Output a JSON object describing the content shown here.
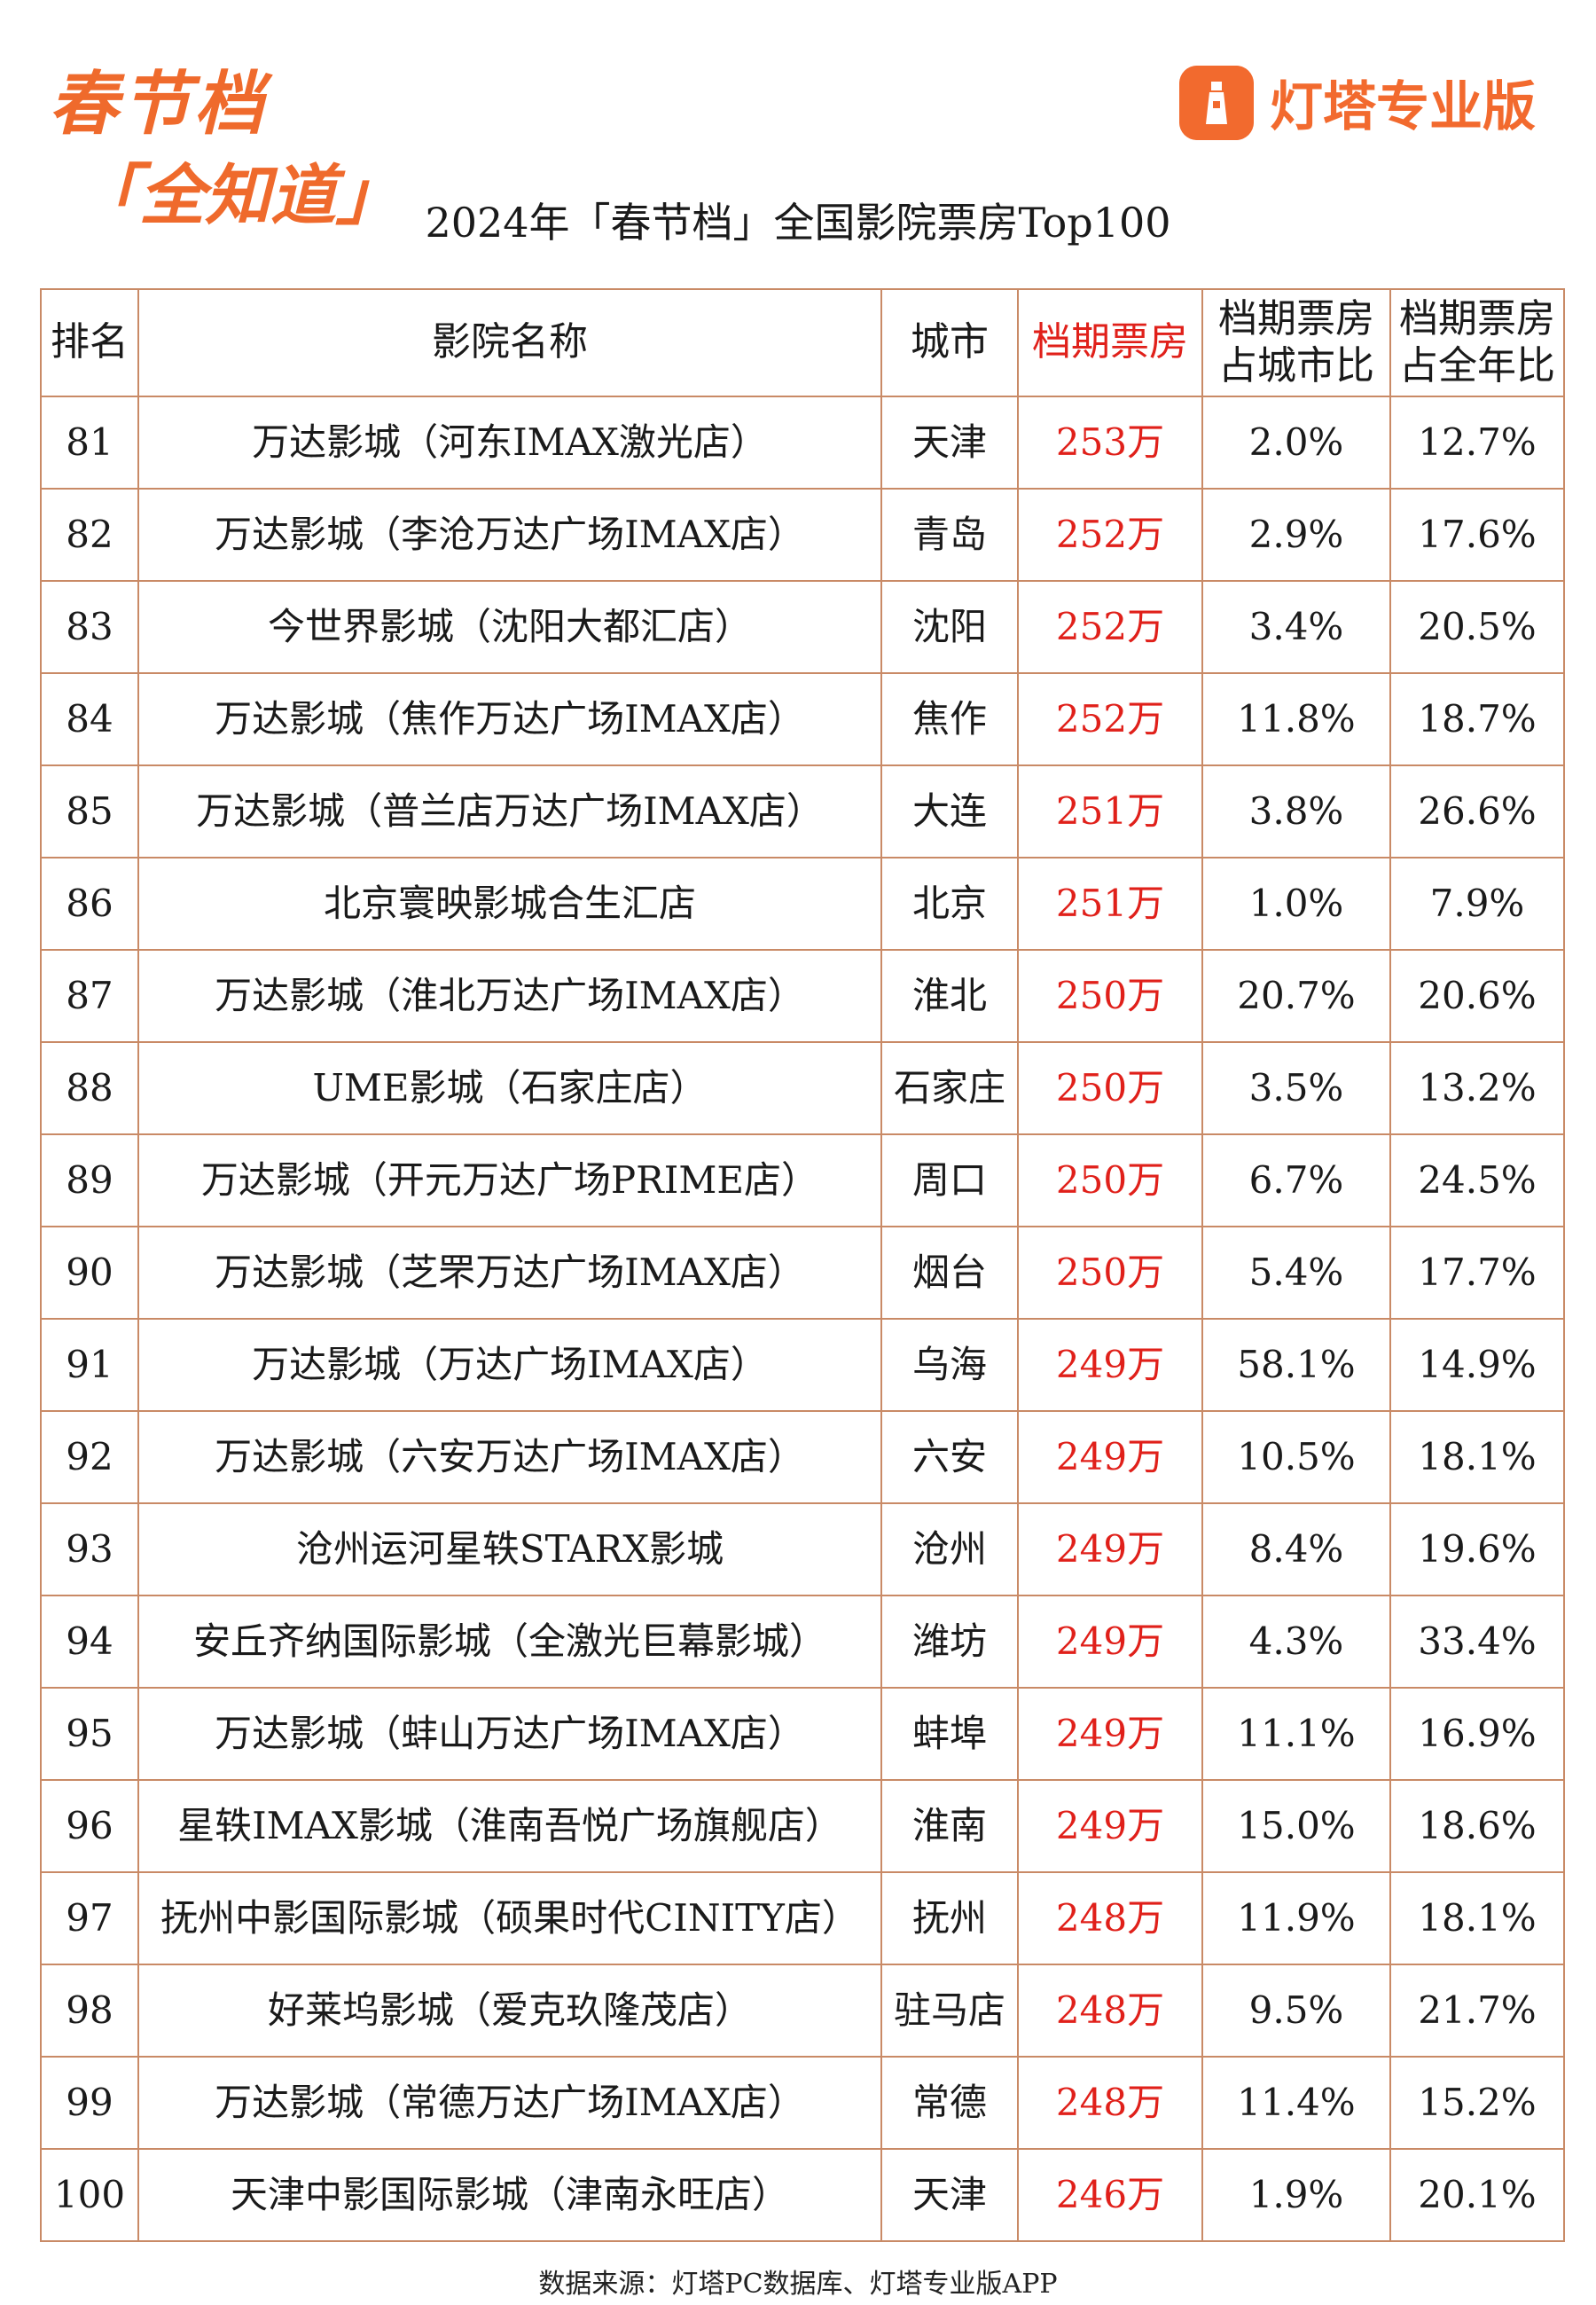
{
  "header": {
    "logo_line1": "春节档",
    "logo_line2": "「全知道」",
    "brand": "灯塔专业版",
    "title": "2024年「春节档」全国影院票房Top100"
  },
  "table": {
    "columns": [
      "排名",
      "影院名称",
      "城市",
      "档期票房",
      "档期票房占城市比",
      "档期票房占全年比"
    ],
    "rows": [
      [
        "81",
        "万达影城（河东IMAX激光店）",
        "天津",
        "253万",
        "2.0%",
        "12.7%"
      ],
      [
        "82",
        "万达影城（李沧万达广场IMAX店）",
        "青岛",
        "252万",
        "2.9%",
        "17.6%"
      ],
      [
        "83",
        "今世界影城（沈阳大都汇店）",
        "沈阳",
        "252万",
        "3.4%",
        "20.5%"
      ],
      [
        "84",
        "万达影城（焦作万达广场IMAX店）",
        "焦作",
        "252万",
        "11.8%",
        "18.7%"
      ],
      [
        "85",
        "万达影城（普兰店万达广场IMAX店）",
        "大连",
        "251万",
        "3.8%",
        "26.6%"
      ],
      [
        "86",
        "北京寰映影城合生汇店",
        "北京",
        "251万",
        "1.0%",
        "7.9%"
      ],
      [
        "87",
        "万达影城（淮北万达广场IMAX店）",
        "淮北",
        "250万",
        "20.7%",
        "20.6%"
      ],
      [
        "88",
        "UME影城（石家庄店）",
        "石家庄",
        "250万",
        "3.5%",
        "13.2%"
      ],
      [
        "89",
        "万达影城（开元万达广场PRIME店）",
        "周口",
        "250万",
        "6.7%",
        "24.5%"
      ],
      [
        "90",
        "万达影城（芝罘万达广场IMAX店）",
        "烟台",
        "250万",
        "5.4%",
        "17.7%"
      ],
      [
        "91",
        "万达影城（万达广场IMAX店）",
        "乌海",
        "249万",
        "58.1%",
        "14.9%"
      ],
      [
        "92",
        "万达影城（六安万达广场IMAX店）",
        "六安",
        "249万",
        "10.5%",
        "18.1%"
      ],
      [
        "93",
        "沧州运河星轶STARX影城",
        "沧州",
        "249万",
        "8.4%",
        "19.6%"
      ],
      [
        "94",
        "安丘齐纳国际影城（全激光巨幕影城）",
        "潍坊",
        "249万",
        "4.3%",
        "33.4%"
      ],
      [
        "95",
        "万达影城（蚌山万达广场IMAX店）",
        "蚌埠",
        "249万",
        "11.1%",
        "16.9%"
      ],
      [
        "96",
        "星轶IMAX影城（淮南吾悦广场旗舰店）",
        "淮南",
        "249万",
        "15.0%",
        "18.6%"
      ],
      [
        "97",
        "抚州中影国际影城（硕果时代CINITY店）",
        "抚州",
        "248万",
        "11.9%",
        "18.1%"
      ],
      [
        "98",
        "好莱坞影城（爱克玖隆茂店）",
        "驻马店",
        "248万",
        "9.5%",
        "21.7%"
      ],
      [
        "99",
        "万达影城（常德万达广场IMAX店）",
        "常德",
        "248万",
        "11.4%",
        "15.2%"
      ],
      [
        "100",
        "天津中影国际影城（津南永旺店）",
        "天津",
        "246万",
        "1.9%",
        "20.1%"
      ]
    ]
  },
  "footer": {
    "source": "数据来源：灯塔PC数据库、灯塔专业版APP"
  }
}
